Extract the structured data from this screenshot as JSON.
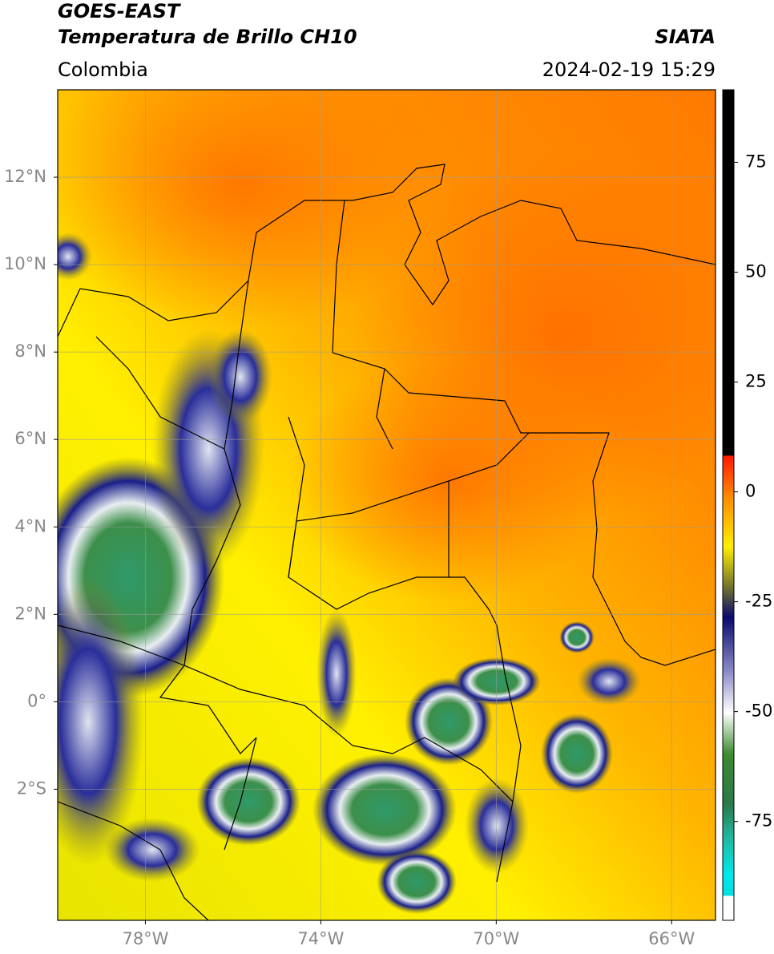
{
  "header": {
    "title_line1": "GOES-EAST",
    "title_line2": "Temperatura de Brillo CH10",
    "source": "SIATA",
    "region": "Colombia",
    "datetime": "2024-02-19 15:29"
  },
  "map": {
    "latlim": [
      -5,
      14
    ],
    "lonlim": [
      -80,
      -65
    ],
    "grid": true,
    "latticks": [
      {
        "value": 12,
        "label": "12°N"
      },
      {
        "value": 10,
        "label": "10°N"
      },
      {
        "value": 8,
        "label": "8°N"
      },
      {
        "value": 6,
        "label": "6°N"
      },
      {
        "value": 4,
        "label": "4°N"
      },
      {
        "value": 2,
        "label": "2°N"
      },
      {
        "value": 0,
        "label": "0°"
      },
      {
        "value": -2,
        "label": "2°S"
      }
    ],
    "lonticks": [
      {
        "value": -78,
        "label": "78°W"
      },
      {
        "value": -74,
        "label": "74°W"
      },
      {
        "value": -70,
        "label": "70°W"
      },
      {
        "value": -66,
        "label": "66°W"
      }
    ]
  },
  "colorbar": {
    "lim": [
      -97.5,
      91.5
    ],
    "ticks": [
      75,
      50,
      25,
      0,
      -25,
      -50,
      -75
    ]
  }
}
